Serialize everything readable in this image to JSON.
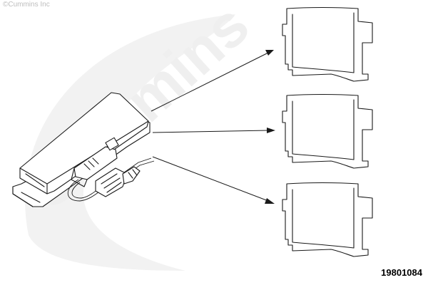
{
  "watermark": {
    "copyright_text": "©Cummins Inc",
    "logo_text": "Cummins",
    "logo_color": "#efefef"
  },
  "figure": {
    "id": "19801084"
  },
  "colors": {
    "ink": "#1a1a1a",
    "background": "#ffffff"
  }
}
